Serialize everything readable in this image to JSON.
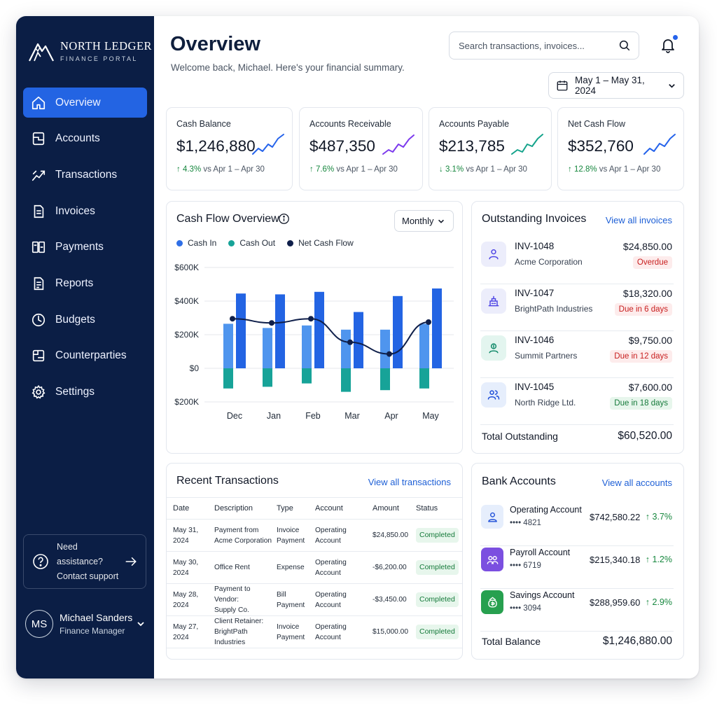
{
  "brand": {
    "name": "NORTH LEDGER",
    "subtitle": "FINANCE PORTAL"
  },
  "sidebar": {
    "items": [
      {
        "label": "Overview",
        "icon": "home-icon",
        "active": true
      },
      {
        "label": "Accounts",
        "icon": "accounts-icon"
      },
      {
        "label": "Transactions",
        "icon": "transactions-icon"
      },
      {
        "label": "Invoices",
        "icon": "invoices-icon"
      },
      {
        "label": "Payments",
        "icon": "payments-icon"
      },
      {
        "label": "Reports",
        "icon": "reports-icon"
      },
      {
        "label": "Budgets",
        "icon": "budgets-icon"
      },
      {
        "label": "Counterparties",
        "icon": "counterparties-icon"
      },
      {
        "label": "Settings",
        "icon": "gear-icon"
      }
    ],
    "help": {
      "line1": "Need assistance?",
      "line2": "Contact support"
    },
    "user": {
      "initials": "MS",
      "name": "Michael Sanders",
      "role": "Finance Manager"
    }
  },
  "header": {
    "title": "Overview",
    "subtitle": "Welcome back, Michael. Here's your financial summary.",
    "search_placeholder": "Search transactions, invoices...",
    "date_range": "May 1 – May 31, 2024"
  },
  "kpis": [
    {
      "label": "Cash Balance",
      "value": "$1,246,880",
      "change": "4.3%",
      "direction": "up",
      "period": "vs Apr 1 – Apr 30",
      "color": "#2563eb"
    },
    {
      "label": "Accounts Receivable",
      "value": "$487,350",
      "change": "7.6%",
      "direction": "up",
      "period": "vs Apr 1 – Apr 30",
      "color": "#7c3aed"
    },
    {
      "label": "Accounts Payable",
      "value": "$213,785",
      "change": "3.1%",
      "direction": "down",
      "period": "vs Apr 1 – Apr 30",
      "color": "#14a38b"
    },
    {
      "label": "Net Cash Flow",
      "value": "$352,760",
      "change": "12.8%",
      "direction": "up",
      "period": "vs Apr 1 – Apr 30",
      "color": "#2563eb"
    }
  ],
  "cashflow": {
    "title": "Cash Flow Overview",
    "period_select": "Monthly",
    "legend": [
      {
        "name": "Cash In",
        "color": "#2f6fe6"
      },
      {
        "name": "Cash Out",
        "color": "#17a398"
      },
      {
        "name": "Net Cash Flow",
        "color": "#0f1f4a"
      }
    ]
  },
  "chart_data": {
    "type": "bar",
    "categories": [
      "Dec",
      "Jan",
      "Feb",
      "Mar",
      "Apr",
      "May"
    ],
    "ylim": [
      -200,
      600
    ],
    "yticks": [
      600,
      400,
      200,
      0,
      -200
    ],
    "ytick_labels": [
      "$600K",
      "$400K",
      "$200K",
      "$0",
      "$200K"
    ],
    "series": [
      {
        "name": "Cash In",
        "values": [
          [
            265,
            445
          ],
          [
            240,
            440
          ],
          [
            255,
            455
          ],
          [
            230,
            335
          ],
          [
            230,
            430
          ],
          [
            265,
            475
          ]
        ]
      },
      {
        "name": "Cash Out",
        "values": [
          -120,
          -110,
          -90,
          -140,
          -130,
          -120
        ]
      },
      {
        "name": "Net Cash Flow",
        "values": [
          295,
          270,
          295,
          155,
          85,
          275
        ]
      }
    ]
  },
  "invoices": {
    "title": "Outstanding Invoices",
    "link": "View all invoices",
    "items": [
      {
        "id": "INV-1048",
        "company": "Acme Corporation",
        "amount": "$24,850.00",
        "status": "Overdue",
        "tone": "red",
        "icon": "user-icon",
        "bg": "#ecedfb",
        "fg": "#4f46e5"
      },
      {
        "id": "INV-1047",
        "company": "BrightPath Industries",
        "amount": "$18,320.00",
        "status": "Due in 6 days",
        "tone": "red",
        "icon": "building-icon",
        "bg": "#ecedfb",
        "fg": "#4f46e5"
      },
      {
        "id": "INV-1046",
        "company": "Summit Partners",
        "amount": "$9,750.00",
        "status": "Due in 12 days",
        "tone": "red",
        "icon": "partner-icon",
        "bg": "#e3f5ef",
        "fg": "#128a6a"
      },
      {
        "id": "INV-1045",
        "company": "North Ridge Ltd.",
        "amount": "$7,600.00",
        "status": "Due in 18 days",
        "tone": "green",
        "icon": "team-icon",
        "bg": "#e6eefc",
        "fg": "#1d4ed8"
      }
    ],
    "total_label": "Total Outstanding",
    "total_value": "$60,520.00"
  },
  "transactions": {
    "title": "Recent Transactions",
    "link": "View all transactions",
    "columns": [
      "Date",
      "Description",
      "Type",
      "Account",
      "Amount",
      "Status"
    ],
    "rows": [
      {
        "date": "May 31, 2024",
        "desc": [
          "Payment from",
          "Acme Corporation"
        ],
        "type": [
          "Invoice",
          "Payment"
        ],
        "account": "Operating Account",
        "amount": "$24,850.00",
        "status": "Completed"
      },
      {
        "date": "May 30, 2024",
        "desc": [
          "Office Rent"
        ],
        "type": [
          "Expense"
        ],
        "account": "Operating Account",
        "amount": "-$6,200.00",
        "status": "Completed"
      },
      {
        "date": "May 28, 2024",
        "desc": [
          "Payment to Vendor:",
          "Supply Co."
        ],
        "type": [
          "Bill Payment"
        ],
        "account": "Operating Account",
        "amount": "-$3,450.00",
        "status": "Completed"
      },
      {
        "date": "May 27, 2024",
        "desc": [
          "Client Retainer:",
          "BrightPath Industries"
        ],
        "type": [
          "Invoice",
          "Payment"
        ],
        "account": "Operating Account",
        "amount": "$15,000.00",
        "status": "Completed"
      }
    ]
  },
  "bank": {
    "title": "Bank Accounts",
    "link": "View all accounts",
    "items": [
      {
        "name": "Operating Account",
        "number": "•••• 4821",
        "balance": "$742,580.22",
        "change": "3.7%",
        "bg": "#e6eefc",
        "fg": "#1d4ed8",
        "icon": "user-icon"
      },
      {
        "name": "Payroll Account",
        "number": "•••• 6719",
        "balance": "$215,340.18",
        "change": "1.2%",
        "bg": "#7b4fe0",
        "fg": "#ffffff",
        "icon": "people-icon"
      },
      {
        "name": "Savings Account",
        "number": "•••• 3094",
        "balance": "$288,959.60",
        "change": "2.9%",
        "bg": "#27a04f",
        "fg": "#ffffff",
        "icon": "savings-icon"
      }
    ],
    "total_label": "Total Balance",
    "total_value": "$1,246,880.00"
  }
}
